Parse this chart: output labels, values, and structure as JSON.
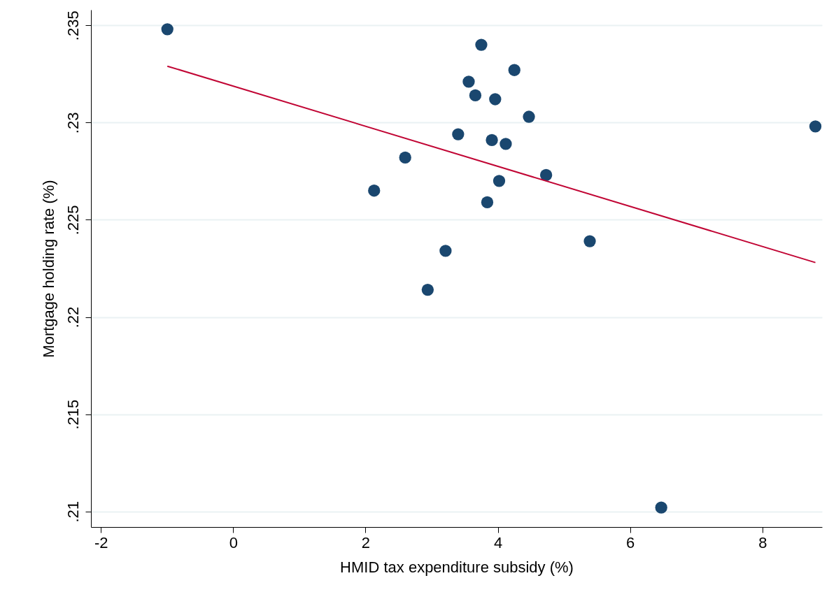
{
  "chart_data": {
    "type": "scatter",
    "xlabel": "HMID tax expenditure subsidy (%)",
    "ylabel": "Mortgage holding rate (%)",
    "xlim": [
      -2.15,
      8.9
    ],
    "ylim": [
      0.2092,
      0.2358
    ],
    "xticks": [
      -2,
      0,
      2,
      4,
      6,
      8
    ],
    "yticks": [
      {
        "value": 0.21,
        "label": ".21"
      },
      {
        "value": 0.215,
        "label": ".215"
      },
      {
        "value": 0.22,
        "label": ".22"
      },
      {
        "value": 0.225,
        "label": ".225"
      },
      {
        "value": 0.23,
        "label": ".23"
      },
      {
        "value": 0.235,
        "label": ".235"
      }
    ],
    "grid": "y",
    "series": [
      {
        "marker": "circle",
        "color": "#1a476f",
        "x": [
          -0.995,
          3.75,
          4.25,
          3.56,
          3.66,
          3.96,
          4.47,
          8.8,
          3.4,
          3.91,
          4.12,
          2.6,
          4.73,
          2.13,
          4.02,
          3.84,
          5.39,
          3.21,
          2.94,
          6.47
        ],
        "values": [
          0.2348,
          0.234,
          0.2327,
          0.2321,
          0.2314,
          0.2312,
          0.2303,
          0.2298,
          0.2294,
          0.2291,
          0.2289,
          0.2282,
          0.2273,
          0.2265,
          0.227,
          0.2259,
          0.2239,
          0.2234,
          0.2214,
          0.2102
        ]
      },
      {
        "type": "line",
        "color": "#c10534",
        "line_style": "solid",
        "x": [
          -0.995,
          8.8
        ],
        "values": [
          0.2329,
          0.2228
        ]
      }
    ]
  }
}
